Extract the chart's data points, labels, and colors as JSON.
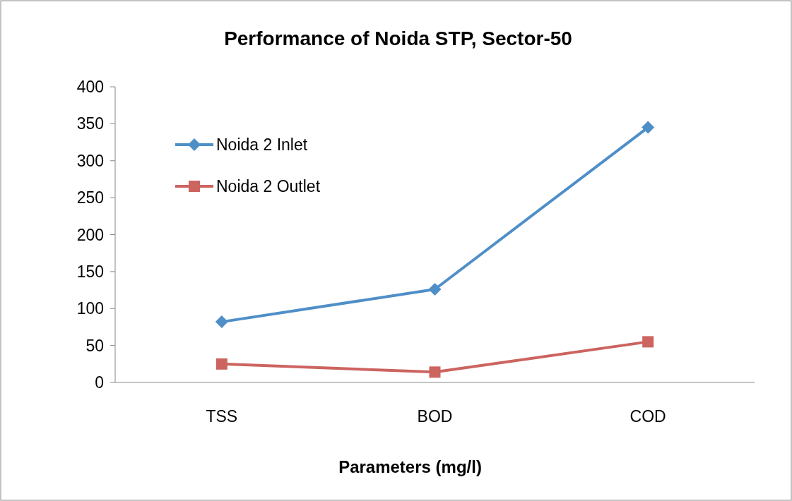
{
  "chart_data": {
    "type": "line",
    "title": "Performance of Noida STP, Sector-50",
    "xlabel": "Parameters (mg/l)",
    "categories": [
      "TSS",
      "BOD",
      "COD"
    ],
    "series": [
      {
        "name": "Noida 2 Inlet",
        "color": "#4f8fc8",
        "values": [
          82,
          126,
          345
        ],
        "marker": "diamond"
      },
      {
        "name": "Noida 2 Outlet",
        "color": "#cc6460",
        "values": [
          25,
          14,
          55
        ],
        "marker": "square"
      }
    ],
    "ylim": [
      0,
      400
    ],
    "yticks": [
      0,
      50,
      100,
      150,
      200,
      250,
      300,
      350,
      400
    ],
    "grid": false,
    "legend": "top left"
  }
}
